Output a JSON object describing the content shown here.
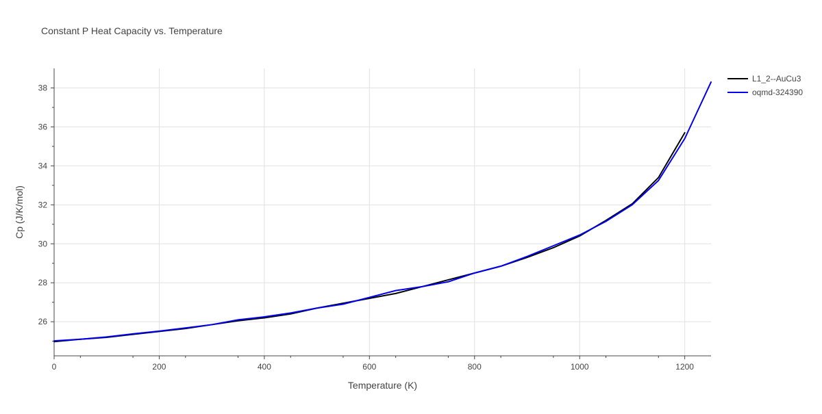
{
  "chart_data": {
    "type": "line",
    "title": "Constant P Heat Capacity vs. Temperature",
    "xlabel": "Temperature (K)",
    "ylabel": "Cp (J/K/mol)",
    "xlim": [
      0,
      1250
    ],
    "ylim": [
      24.25,
      39
    ],
    "x_ticks": [
      0,
      200,
      400,
      600,
      800,
      1000,
      1200
    ],
    "y_ticks": [
      26,
      28,
      30,
      32,
      34,
      36,
      38
    ],
    "grid": true,
    "legend_position": "top-right",
    "series": [
      {
        "name": "L1_2--AuCu3",
        "color": "#000000",
        "x": [
          0,
          50,
          100,
          150,
          200,
          250,
          300,
          350,
          400,
          450,
          500,
          550,
          600,
          650,
          700,
          750,
          800,
          850,
          900,
          950,
          1000,
          1050,
          1100,
          1150,
          1200
        ],
        "y": [
          24.98,
          25.1,
          25.2,
          25.35,
          25.5,
          25.65,
          25.85,
          26.05,
          26.2,
          26.4,
          26.7,
          26.95,
          27.2,
          27.45,
          27.8,
          28.15,
          28.5,
          28.85,
          29.3,
          29.8,
          30.4,
          31.2,
          32.05,
          33.4,
          35.7
        ]
      },
      {
        "name": "oqmd-324390",
        "color": "#0000ee",
        "x": [
          0,
          50,
          100,
          150,
          200,
          250,
          300,
          350,
          400,
          450,
          500,
          550,
          600,
          650,
          700,
          750,
          800,
          850,
          900,
          950,
          1000,
          1050,
          1100,
          1150,
          1200,
          1250
        ],
        "y": [
          25.02,
          25.1,
          25.22,
          25.38,
          25.52,
          25.68,
          25.85,
          26.1,
          26.25,
          26.45,
          26.7,
          26.9,
          27.25,
          27.6,
          27.8,
          28.05,
          28.5,
          28.85,
          29.35,
          29.9,
          30.45,
          31.15,
          32.0,
          33.25,
          35.4,
          38.3
        ]
      }
    ]
  }
}
